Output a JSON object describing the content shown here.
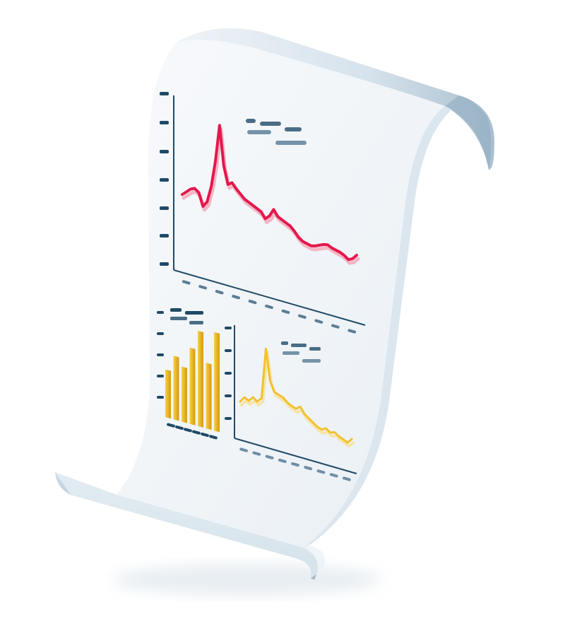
{
  "colors": {
    "paper": "#f1f5f9",
    "paper_shade": "#b9ccd9",
    "curl_dark": "#7f9fb5",
    "axis": "#1f4966",
    "axis_light": "#7fa3bb",
    "line_main": "#e4174b",
    "line_main_shadow": "#f3b6c4",
    "line_secondary": "#f2c12e",
    "bar_fill_a": "#f6c133",
    "bar_fill_b": "#d99a13",
    "placeholder_dark": "#1f4966",
    "placeholder_light": "#6f8ea5"
  },
  "illustration": {
    "subject": "scroll-with-charts-icon"
  },
  "main_chart": {
    "type": "line",
    "values": [
      0.18,
      0.22,
      0.26,
      0.28,
      0.25,
      0.12,
      0.18,
      0.35,
      0.62,
      1.0,
      0.6,
      0.42,
      0.45,
      0.4,
      0.36,
      0.32,
      0.3,
      0.28,
      0.26,
      0.24,
      0.18,
      0.22,
      0.3,
      0.24,
      0.22,
      0.2,
      0.18,
      0.14,
      0.09,
      0.06,
      0.05,
      0.04,
      0.05,
      0.07,
      0.09,
      0.1,
      0.08,
      0.07,
      0.06,
      0.04,
      0.01,
      0.03,
      0.08
    ]
  },
  "bar_chart": {
    "type": "bar",
    "values": [
      0.45,
      0.6,
      0.52,
      0.72,
      0.9,
      0.62,
      0.93
    ]
  },
  "small_line_chart": {
    "type": "line",
    "values": [
      0.18,
      0.25,
      0.22,
      0.28,
      0.24,
      0.3,
      0.95,
      0.55,
      0.42,
      0.4,
      0.38,
      0.33,
      0.3,
      0.28,
      0.32,
      0.24,
      0.2,
      0.16,
      0.12,
      0.1,
      0.13,
      0.09,
      0.11,
      0.07,
      0.05,
      0.02,
      0.08
    ]
  }
}
